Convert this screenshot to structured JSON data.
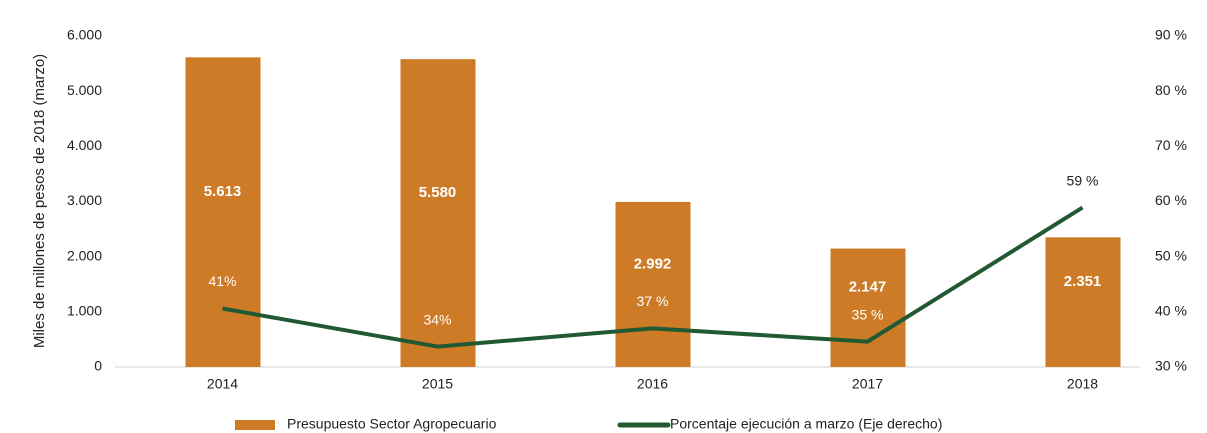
{
  "chart_data": {
    "type": "bar_line",
    "y_label": "Miles de millones de pesos de 2018 (marzo)",
    "categories": [
      "2014",
      "2015",
      "2016",
      "2017",
      "2018"
    ],
    "series": [
      {
        "name": "Presupuesto Sector Agropecuario",
        "type": "bar",
        "color": "#cd7b26",
        "values": [
          5613,
          5580,
          2992,
          2147,
          2351
        ],
        "value_labels": [
          "5.613",
          "5.580",
          "2.992",
          "2.147",
          "2.351"
        ]
      },
      {
        "name": "Porcentaje ejecución a marzo (Eje derecho)",
        "type": "line",
        "axis": "y2",
        "color": "#215a32",
        "values": [
          40.6,
          33.7,
          37.0,
          34.6,
          58.9
        ],
        "value_labels": [
          "41%",
          "34%",
          "37 %",
          "35 %",
          "59 %"
        ]
      }
    ],
    "ylim": [
      0,
      6000
    ],
    "yticks": [
      0,
      {
        "value": 1000,
        "label": "1.000"
      },
      {
        "value": 2000,
        "label": "2.000"
      },
      {
        "value": 3000,
        "label": "3.000"
      },
      {
        "value": 4000,
        "label": "4.000"
      },
      {
        "value": 5000,
        "label": "5.000"
      },
      {
        "value": 6000,
        "label": "6.000"
      }
    ],
    "y2lim": [
      30,
      90
    ],
    "y2ticks": [
      {
        "value": 30,
        "label": "30 %"
      },
      {
        "value": 40,
        "label": "40 %"
      },
      {
        "value": 50,
        "label": "50 %"
      },
      {
        "value": 60,
        "label": "60 %"
      },
      {
        "value": 70,
        "label": "70 %"
      },
      {
        "value": 80,
        "label": "80 %"
      },
      {
        "value": 90,
        "label": "90 %"
      }
    ],
    "legend": "bottom"
  }
}
